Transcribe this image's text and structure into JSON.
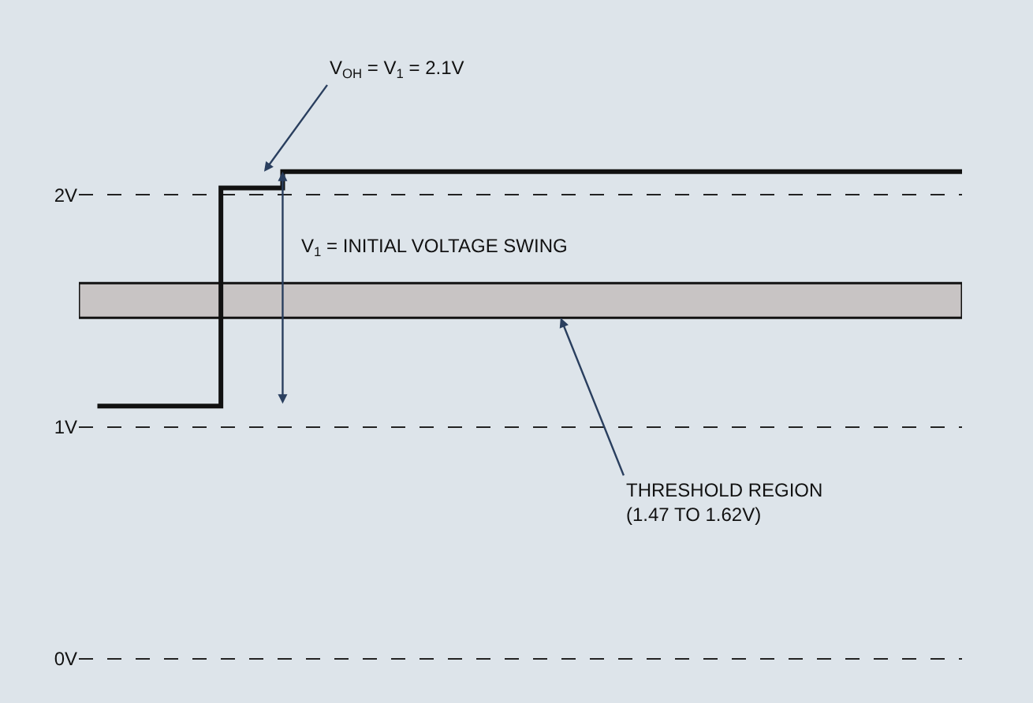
{
  "chart_data": {
    "type": "step",
    "categories": [
      null,
      null,
      null,
      null,
      null,
      null,
      null,
      null,
      null,
      null,
      null,
      null,
      null,
      null,
      null
    ],
    "series": [
      {
        "color": "#111111",
        "values": [
          1.09,
          1.09,
          2.03,
          2.1,
          2.1,
          2.1,
          2.1,
          2.1,
          2.1,
          2.1,
          2.1,
          2.1,
          2.1,
          2.1,
          2.1
        ]
      }
    ],
    "ylim": [
      -0.19,
      2.84
    ],
    "yticks": [
      {
        "value": 0,
        "label": "0V"
      },
      {
        "value": 1,
        "label": "1V"
      },
      {
        "value": 2,
        "label": "2V"
      }
    ],
    "grid": "y",
    "tick_labels": "y",
    "line_style": "solid",
    "marker": "none",
    "bands": [
      {
        "axis": "y",
        "from": 1.47,
        "to": 1.62,
        "color": "#c8c4c4",
        "label": "THRESHOLD REGION\n(1.47 TO 1.62V)"
      }
    ],
    "annotations": [
      "V$_{OH}$ = V$_{1}$ = 2.1V",
      "V$_{1}$ = INITIAL VOLTAGE SWING"
    ]
  }
}
